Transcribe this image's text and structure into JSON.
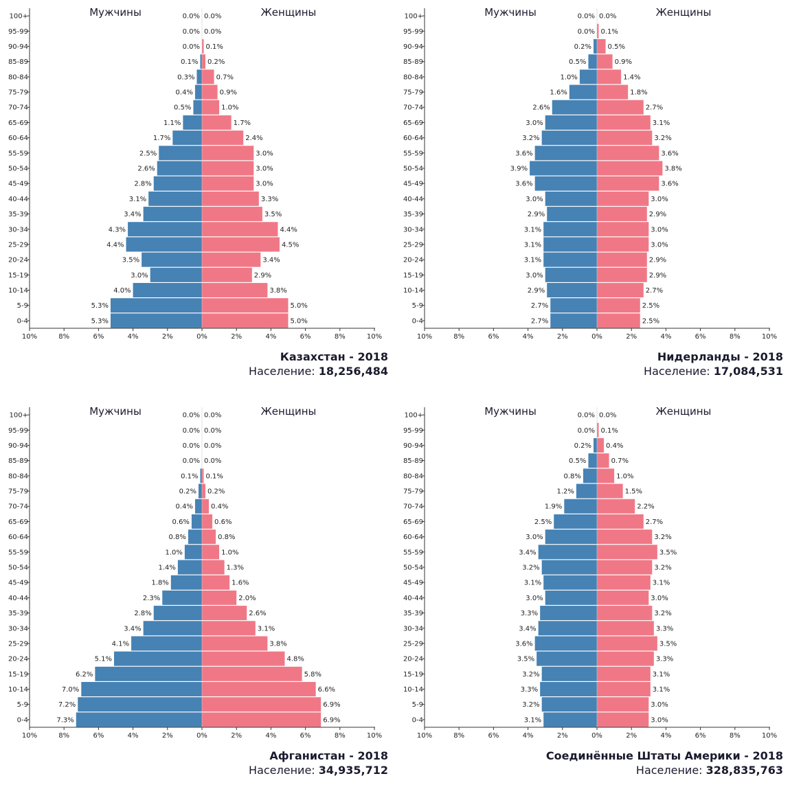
{
  "labels": {
    "male": "Мужчины",
    "female": "Женщины",
    "population_prefix": "Население:"
  },
  "colors": {
    "male": "#4682b4",
    "female": "#f07886",
    "axis": "#333333"
  },
  "chart_data": [
    {
      "type": "bar",
      "title": "Казахстан - 2018",
      "population": "18,256,484",
      "categories": [
        "0-4",
        "5-9",
        "10-14",
        "15-19",
        "20-24",
        "25-29",
        "30-34",
        "35-39",
        "40-44",
        "45-49",
        "50-54",
        "55-59",
        "60-64",
        "65-69",
        "70-74",
        "75-79",
        "80-84",
        "85-89",
        "90-94",
        "95-99",
        "100+"
      ],
      "xlim": [
        -10,
        10
      ],
      "xticks": [
        "10%",
        "8%",
        "6%",
        "4%",
        "2%",
        "0%",
        "2%",
        "4%",
        "6%",
        "8%",
        "10%"
      ],
      "series": [
        {
          "name": "Мужчины",
          "values": [
            5.3,
            5.3,
            4.0,
            3.0,
            3.5,
            4.4,
            4.3,
            3.4,
            3.1,
            2.8,
            2.6,
            2.5,
            1.7,
            1.1,
            0.5,
            0.4,
            0.3,
            0.1,
            0.0,
            0.0,
            0.0
          ]
        },
        {
          "name": "Женщины",
          "values": [
            5.0,
            5.0,
            3.8,
            2.9,
            3.4,
            4.5,
            4.4,
            3.5,
            3.3,
            3.0,
            3.0,
            3.0,
            2.4,
            1.7,
            1.0,
            0.9,
            0.7,
            0.2,
            0.1,
            0.0,
            0.0
          ]
        }
      ]
    },
    {
      "type": "bar",
      "title": "Нидерланды - 2018",
      "population": "17,084,531",
      "categories": [
        "0-4",
        "5-9",
        "10-14",
        "15-19",
        "20-24",
        "25-29",
        "30-34",
        "35-39",
        "40-44",
        "45-49",
        "50-54",
        "55-59",
        "60-64",
        "65-69",
        "70-74",
        "75-79",
        "80-84",
        "85-89",
        "90-94",
        "95-99",
        "100+"
      ],
      "xlim": [
        -10,
        10
      ],
      "xticks": [
        "10%",
        "8%",
        "6%",
        "4%",
        "2%",
        "0%",
        "2%",
        "4%",
        "6%",
        "8%",
        "10%"
      ],
      "series": [
        {
          "name": "Мужчины",
          "values": [
            2.7,
            2.7,
            2.9,
            3.0,
            3.1,
            3.1,
            3.1,
            2.9,
            3.0,
            3.6,
            3.9,
            3.6,
            3.2,
            3.0,
            2.6,
            1.6,
            1.0,
            0.5,
            0.2,
            0.0,
            0.0
          ]
        },
        {
          "name": "Женщины",
          "values": [
            2.5,
            2.5,
            2.7,
            2.9,
            2.9,
            3.0,
            3.0,
            2.9,
            3.0,
            3.6,
            3.8,
            3.6,
            3.2,
            3.1,
            2.7,
            1.8,
            1.4,
            0.9,
            0.5,
            0.1,
            0.0
          ]
        }
      ]
    },
    {
      "type": "bar",
      "title": "Афганистан - 2018",
      "population": "34,935,712",
      "categories": [
        "0-4",
        "5-9",
        "10-14",
        "15-19",
        "20-24",
        "25-29",
        "30-34",
        "35-39",
        "40-44",
        "45-49",
        "50-54",
        "55-59",
        "60-64",
        "65-69",
        "70-74",
        "75-79",
        "80-84",
        "85-89",
        "90-94",
        "95-99",
        "100+"
      ],
      "xlim": [
        -10,
        10
      ],
      "xticks": [
        "10%",
        "8%",
        "6%",
        "4%",
        "2%",
        "0%",
        "2%",
        "4%",
        "6%",
        "8%",
        "10%"
      ],
      "series": [
        {
          "name": "Мужчины",
          "values": [
            7.3,
            7.2,
            7.0,
            6.2,
            5.1,
            4.1,
            3.4,
            2.8,
            2.3,
            1.8,
            1.4,
            1.0,
            0.8,
            0.6,
            0.4,
            0.2,
            0.1,
            0.0,
            0.0,
            0.0,
            0.0
          ]
        },
        {
          "name": "Женщины",
          "values": [
            6.9,
            6.9,
            6.6,
            5.8,
            4.8,
            3.8,
            3.1,
            2.6,
            2.0,
            1.6,
            1.3,
            1.0,
            0.8,
            0.6,
            0.4,
            0.2,
            0.1,
            0.0,
            0.0,
            0.0,
            0.0
          ]
        }
      ]
    },
    {
      "type": "bar",
      "title": "Соединённые Штаты Америки - 2018",
      "population": "328,835,763",
      "categories": [
        "0-4",
        "5-9",
        "10-14",
        "15-19",
        "20-24",
        "25-29",
        "30-34",
        "35-39",
        "40-44",
        "45-49",
        "50-54",
        "55-59",
        "60-64",
        "65-69",
        "70-74",
        "75-79",
        "80-84",
        "85-89",
        "90-94",
        "95-99",
        "100+"
      ],
      "xlim": [
        -10,
        10
      ],
      "xticks": [
        "10%",
        "8%",
        "6%",
        "4%",
        "2%",
        "0%",
        "2%",
        "4%",
        "6%",
        "8%",
        "10%"
      ],
      "series": [
        {
          "name": "Мужчины",
          "values": [
            3.1,
            3.2,
            3.3,
            3.2,
            3.5,
            3.6,
            3.4,
            3.3,
            3.0,
            3.1,
            3.2,
            3.4,
            3.0,
            2.5,
            1.9,
            1.2,
            0.8,
            0.5,
            0.2,
            0.0,
            0.0
          ]
        },
        {
          "name": "Женщины",
          "values": [
            3.0,
            3.0,
            3.1,
            3.1,
            3.3,
            3.5,
            3.3,
            3.2,
            3.0,
            3.1,
            3.2,
            3.5,
            3.2,
            2.7,
            2.2,
            1.5,
            1.0,
            0.7,
            0.4,
            0.1,
            0.0
          ]
        }
      ]
    }
  ]
}
